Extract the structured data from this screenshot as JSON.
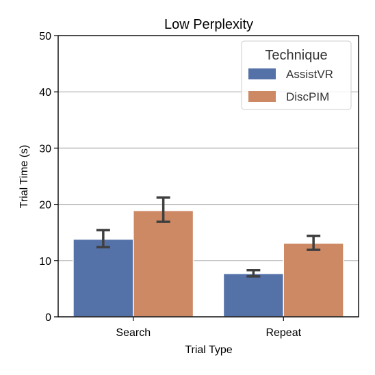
{
  "chart_data": {
    "type": "bar",
    "title": "Low Perplexity",
    "xlabel": "Trial Type",
    "ylabel": "Trial Time (s)",
    "categories": [
      "Search",
      "Repeat"
    ],
    "ylim": [
      0,
      50
    ],
    "yticks": [
      0,
      10,
      20,
      30,
      40,
      50
    ],
    "grid": "horizontal",
    "legend": {
      "title": "Technique",
      "placement": "top-right"
    },
    "series": [
      {
        "name": "AssistVR",
        "color": "#5572a8",
        "values": [
          13.8,
          7.7
        ],
        "error_low": [
          12.4,
          7.2
        ],
        "error_high": [
          15.4,
          8.3
        ]
      },
      {
        "name": "DiscPIM",
        "color": "#cc8963",
        "values": [
          18.9,
          13.1
        ],
        "error_low": [
          16.9,
          11.9
        ],
        "error_high": [
          21.2,
          14.4
        ]
      }
    ]
  }
}
